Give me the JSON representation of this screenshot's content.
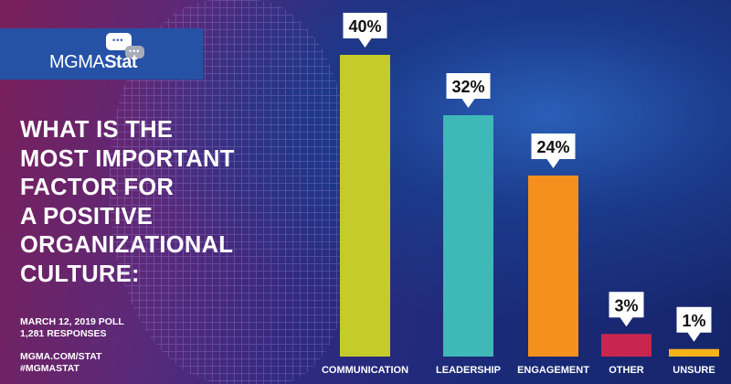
{
  "logo": {
    "text_light": "MGMA",
    "text_bold": "Stat"
  },
  "question": [
    "WHAT IS THE",
    "MOST IMPORTANT",
    "FACTOR FOR",
    "A POSITIVE",
    "ORGANIZATIONAL",
    "CULTURE:"
  ],
  "poll": {
    "date": "MARCH 12, 2019 POLL",
    "responses": "1,281 RESPONSES"
  },
  "links": {
    "url": "MGMA.COM/STAT",
    "hashtag": "#MGMASTAT"
  },
  "chart_data": {
    "type": "bar",
    "title": "WHAT IS THE MOST IMPORTANT FACTOR FOR A POSITIVE ORGANIZATIONAL CULTURE:",
    "categories": [
      "COMMUNICATION",
      "LEADERSHIP",
      "ENGAGEMENT",
      "OTHER",
      "UNSURE"
    ],
    "values": [
      40,
      32,
      24,
      3,
      1
    ],
    "labels": [
      "40%",
      "32%",
      "24%",
      "3%",
      "1%"
    ],
    "colors": [
      "#c5cb2a",
      "#3fb8b8",
      "#f5901e",
      "#c8264f",
      "#f5b31a"
    ],
    "ylim": [
      0,
      40
    ],
    "grid": false,
    "xlabel": "",
    "ylabel": ""
  }
}
